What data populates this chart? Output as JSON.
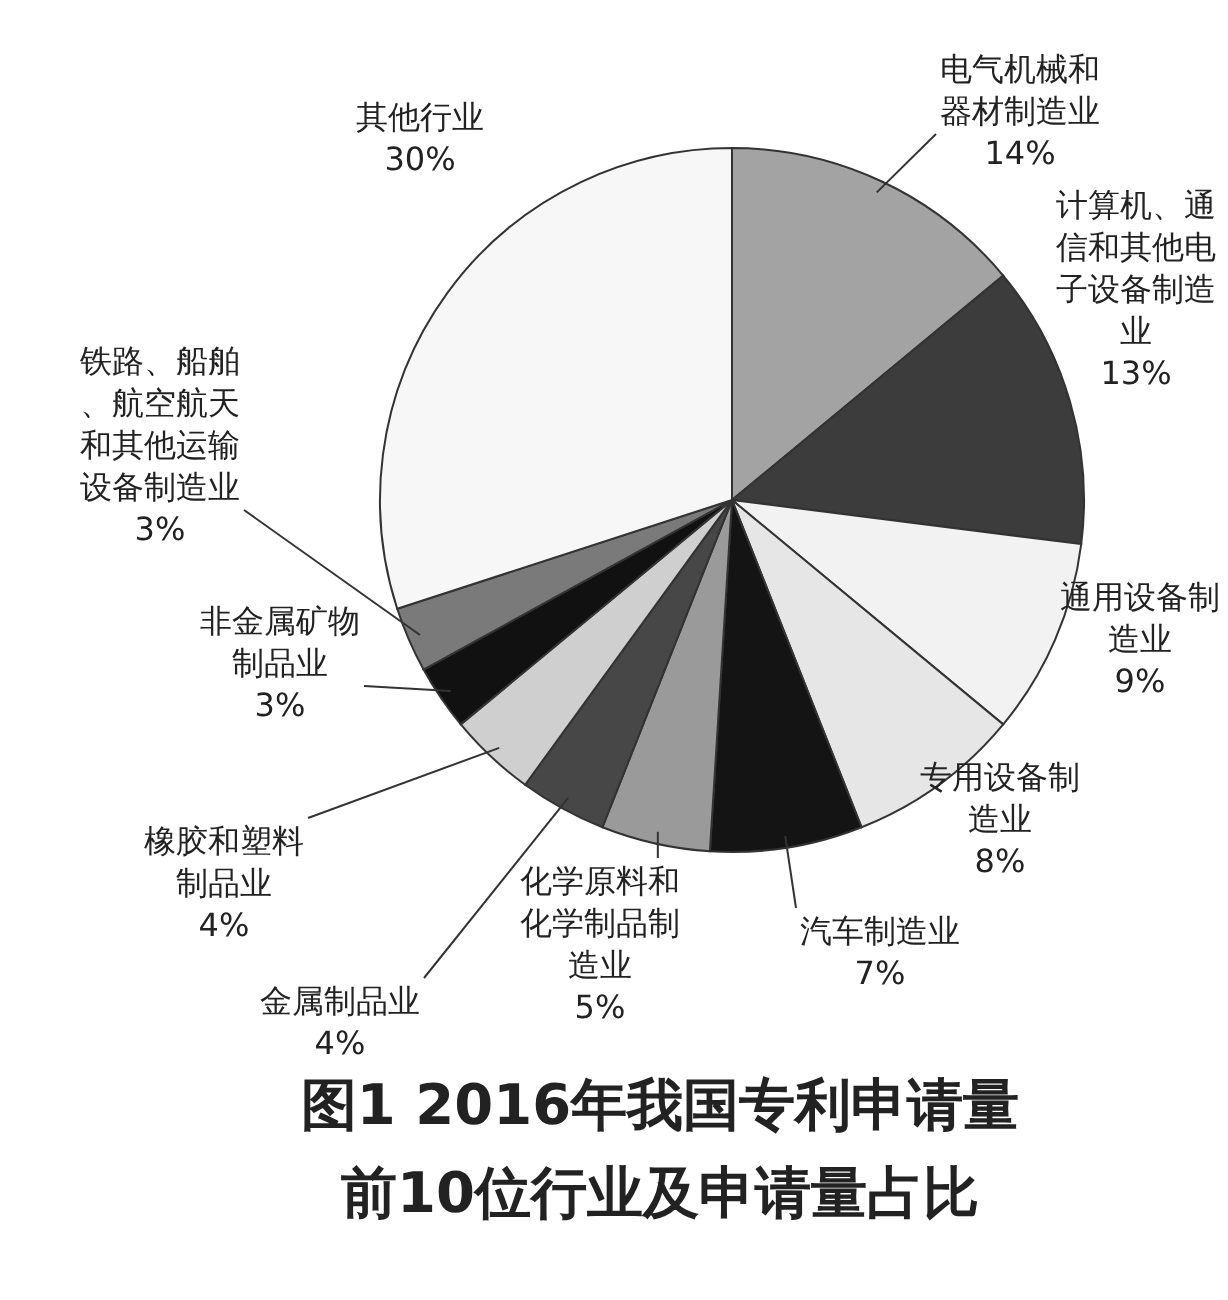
{
  "chart_data": {
    "type": "pie",
    "title": "图1 2016年我国专利申请量前10位行业及申请量占比",
    "categories": [
      "电气机械和器材制造业",
      "计算机、通信和其他电子设备制造业",
      "通用设备制造业",
      "专用设备制造业",
      "汽车制造业",
      "化学原料和化学制品制造业",
      "金属制品业",
      "橡胶和塑料制品业",
      "非金属矿物制品业",
      "铁路、船舶、航空航天和其他运输设备制造业",
      "其他行业"
    ],
    "values": [
      14,
      13,
      9,
      8,
      7,
      5,
      4,
      4,
      3,
      3,
      30
    ],
    "colors": [
      "#a3a3a3",
      "#3c3c3c",
      "#f2f2f2",
      "#e6e6e6",
      "#141414",
      "#9a9a9a",
      "#474747",
      "#cfcfcf",
      "#111111",
      "#7a7a7a",
      "#f7f7f7"
    ],
    "value_labels": [
      "14%",
      "13%",
      "9%",
      "8%",
      "7%",
      "5%",
      "4%",
      "4%",
      "3%",
      "3%",
      "30%"
    ]
  }
}
